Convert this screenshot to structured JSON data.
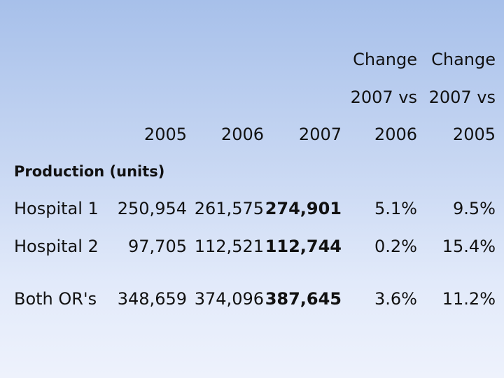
{
  "chart_data": {
    "type": "table",
    "header": {
      "line1": [
        "",
        "",
        "",
        "Change",
        "Change"
      ],
      "line2": [
        "",
        "",
        "",
        "2007 vs",
        "2007 vs"
      ],
      "line3": [
        "2005",
        "2006",
        "2007",
        "2006",
        "2005"
      ]
    },
    "section_label": "Production (units)",
    "rows": [
      {
        "label": "Hospital 1",
        "values": [
          "250,954",
          "261,575",
          "274,901",
          "5.1%",
          "9.5%"
        ]
      },
      {
        "label": "Hospital 2",
        "values": [
          "97,705",
          "112,521",
          "112,744",
          "0.2%",
          "15.4%"
        ]
      },
      {
        "label": "Both OR's",
        "values": [
          "348,659",
          "374,096",
          "387,645",
          "3.6%",
          "11.2%"
        ]
      }
    ]
  }
}
